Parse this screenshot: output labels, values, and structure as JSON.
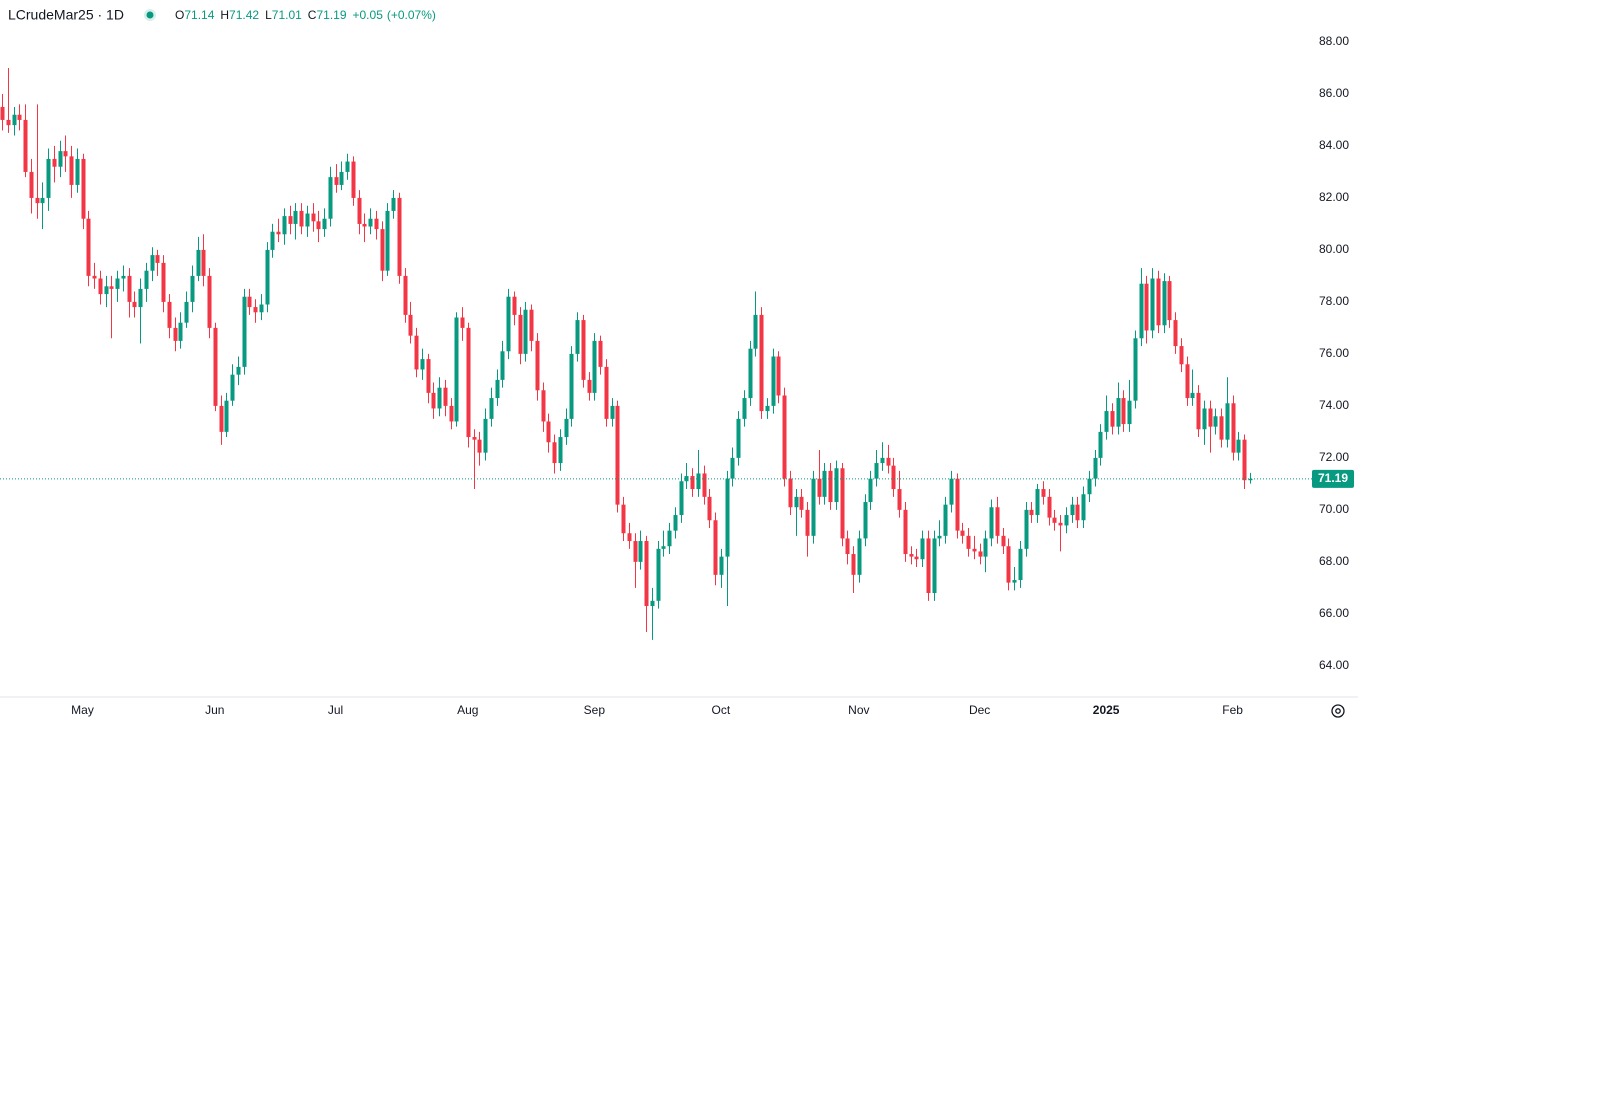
{
  "chart_data": {
    "type": "candlestick",
    "title": "LCrudeMar25 · 1D",
    "ohlc_labels": [
      "O",
      "H",
      "L",
      "C"
    ],
    "change": {
      "value": 0.05,
      "label": "+0.05"
    },
    "change_percent": {
      "value": 0.07,
      "label": "(+0.07%)"
    },
    "up_color": "#089981",
    "down_color": "#f23645",
    "last_price_line": true,
    "ylim": [
      62.8,
      88.46
    ],
    "yticks": [
      {
        "value": 64,
        "label": "64.00"
      },
      {
        "value": 66,
        "label": "66.00"
      },
      {
        "value": 68,
        "label": "68.00"
      },
      {
        "value": 70,
        "label": "70.00"
      },
      {
        "value": 72,
        "label": "72.00"
      },
      {
        "value": 74,
        "label": "74.00"
      },
      {
        "value": 76,
        "label": "76.00"
      },
      {
        "value": 78,
        "label": "78.00"
      },
      {
        "value": 80,
        "label": "80.00"
      },
      {
        "value": 82,
        "label": "82.00"
      },
      {
        "value": 84,
        "label": "84.00"
      },
      {
        "value": 86,
        "label": "86.00"
      },
      {
        "value": 88,
        "label": "88.00"
      }
    ],
    "xlim": [
      -0.35,
      235.8
    ],
    "xticks": [
      {
        "value": 14,
        "label": "May"
      },
      {
        "value": 37,
        "label": "Jun"
      },
      {
        "value": 58,
        "label": "Jul"
      },
      {
        "value": 81,
        "label": "Aug"
      },
      {
        "value": 103,
        "label": "Sep"
      },
      {
        "value": 125,
        "label": "Oct"
      },
      {
        "value": 149,
        "label": "Nov"
      },
      {
        "value": 170,
        "label": "Dec"
      },
      {
        "value": 192,
        "label": "2025"
      },
      {
        "value": 214,
        "label": "Feb"
      }
    ],
    "candles": [
      [
        85.5,
        86.0,
        84.6,
        85.0
      ],
      [
        85.0,
        87.0,
        84.5,
        84.8
      ],
      [
        84.8,
        85.5,
        84.4,
        85.2
      ],
      [
        85.2,
        85.6,
        84.6,
        85.0
      ],
      [
        85.0,
        85.6,
        82.8,
        83.0
      ],
      [
        83.0,
        83.5,
        81.4,
        82.0
      ],
      [
        82.0,
        85.6,
        81.2,
        81.8
      ],
      [
        81.8,
        82.6,
        80.8,
        82.0
      ],
      [
        82.0,
        83.9,
        81.5,
        83.5
      ],
      [
        83.5,
        84.0,
        82.6,
        83.2
      ],
      [
        83.2,
        84.2,
        82.8,
        83.8
      ],
      [
        83.8,
        84.4,
        83.0,
        83.6
      ],
      [
        83.6,
        84.0,
        82.0,
        82.5
      ],
      [
        82.5,
        83.9,
        82.2,
        83.5
      ],
      [
        83.5,
        83.7,
        80.8,
        81.2
      ],
      [
        81.2,
        81.5,
        78.6,
        79.0
      ],
      [
        79.0,
        79.5,
        78.5,
        78.9
      ],
      [
        78.9,
        79.2,
        77.9,
        78.3
      ],
      [
        78.3,
        79.0,
        77.8,
        78.6
      ],
      [
        78.6,
        79.0,
        76.6,
        78.5
      ],
      [
        78.5,
        79.2,
        78.0,
        78.9
      ],
      [
        78.9,
        79.4,
        78.4,
        79.0
      ],
      [
        79.0,
        79.3,
        77.4,
        78.0
      ],
      [
        78.0,
        78.4,
        77.4,
        77.8
      ],
      [
        77.8,
        78.9,
        76.4,
        78.5
      ],
      [
        78.5,
        79.5,
        78.0,
        79.2
      ],
      [
        79.2,
        80.1,
        78.8,
        79.8
      ],
      [
        79.8,
        80.0,
        79.0,
        79.5
      ],
      [
        79.5,
        79.8,
        77.6,
        78.0
      ],
      [
        78.0,
        78.3,
        76.6,
        77.0
      ],
      [
        77.0,
        77.4,
        76.1,
        76.5
      ],
      [
        76.5,
        77.6,
        76.2,
        77.2
      ],
      [
        77.2,
        78.4,
        77.0,
        78.0
      ],
      [
        78.0,
        79.4,
        77.6,
        79.0
      ],
      [
        79.0,
        80.5,
        78.8,
        80.0
      ],
      [
        80.0,
        80.6,
        78.6,
        79.0
      ],
      [
        79.0,
        79.3,
        76.6,
        77.0
      ],
      [
        77.0,
        77.2,
        73.8,
        74.0
      ],
      [
        74.0,
        74.4,
        72.5,
        73.0
      ],
      [
        73.0,
        74.5,
        72.8,
        74.2
      ],
      [
        74.2,
        75.6,
        74.0,
        75.2
      ],
      [
        75.2,
        75.9,
        74.8,
        75.5
      ],
      [
        75.5,
        78.5,
        75.2,
        78.2
      ],
      [
        78.2,
        78.5,
        77.5,
        77.8
      ],
      [
        77.8,
        78.1,
        77.2,
        77.6
      ],
      [
        77.6,
        78.3,
        77.3,
        77.9
      ],
      [
        77.9,
        80.3,
        77.6,
        80.0
      ],
      [
        80.0,
        81.0,
        79.7,
        80.7
      ],
      [
        80.7,
        81.2,
        80.3,
        80.6
      ],
      [
        80.6,
        81.6,
        80.2,
        81.3
      ],
      [
        81.3,
        81.7,
        80.6,
        81.0
      ],
      [
        81.0,
        81.8,
        80.4,
        81.5
      ],
      [
        81.5,
        81.8,
        80.6,
        80.9
      ],
      [
        80.9,
        81.7,
        80.5,
        81.4
      ],
      [
        81.4,
        81.8,
        80.7,
        81.1
      ],
      [
        81.1,
        81.5,
        80.3,
        80.8
      ],
      [
        80.8,
        81.6,
        80.5,
        81.2
      ],
      [
        81.2,
        83.2,
        80.9,
        82.8
      ],
      [
        82.8,
        83.3,
        82.2,
        82.5
      ],
      [
        82.5,
        83.4,
        82.3,
        83.0
      ],
      [
        83.0,
        83.7,
        82.7,
        83.4
      ],
      [
        83.4,
        83.6,
        81.7,
        82.0
      ],
      [
        82.0,
        82.3,
        80.6,
        81.0
      ],
      [
        81.0,
        81.4,
        80.3,
        80.9
      ],
      [
        80.9,
        81.6,
        80.6,
        81.2
      ],
      [
        81.2,
        81.5,
        80.4,
        80.8
      ],
      [
        80.8,
        81.1,
        78.8,
        79.2
      ],
      [
        79.2,
        81.8,
        79.0,
        81.5
      ],
      [
        81.5,
        82.3,
        81.2,
        82.0
      ],
      [
        82.0,
        82.2,
        78.7,
        79.0
      ],
      [
        79.0,
        79.3,
        77.2,
        77.5
      ],
      [
        77.5,
        78.0,
        76.4,
        76.7
      ],
      [
        76.7,
        77.0,
        75.1,
        75.4
      ],
      [
        75.4,
        76.2,
        75.0,
        75.8
      ],
      [
        75.8,
        76.0,
        74.1,
        74.5
      ],
      [
        74.5,
        74.9,
        73.5,
        73.9
      ],
      [
        73.9,
        75.1,
        73.6,
        74.7
      ],
      [
        74.7,
        75.0,
        73.6,
        74.0
      ],
      [
        74.0,
        74.3,
        73.1,
        73.4
      ],
      [
        73.4,
        77.6,
        73.2,
        77.4
      ],
      [
        77.4,
        77.8,
        76.5,
        77.0
      ],
      [
        77.0,
        77.2,
        72.4,
        72.8
      ],
      [
        72.8,
        73.1,
        70.8,
        72.7
      ],
      [
        72.7,
        73.0,
        71.7,
        72.2
      ],
      [
        72.2,
        73.9,
        71.9,
        73.5
      ],
      [
        73.5,
        74.7,
        73.2,
        74.3
      ],
      [
        74.3,
        75.4,
        74.0,
        75.0
      ],
      [
        75.0,
        76.5,
        74.7,
        76.1
      ],
      [
        76.1,
        78.5,
        75.8,
        78.2
      ],
      [
        78.2,
        78.4,
        77.1,
        77.5
      ],
      [
        77.5,
        77.8,
        75.6,
        76.0
      ],
      [
        76.0,
        78.0,
        75.7,
        77.7
      ],
      [
        77.7,
        77.9,
        76.1,
        76.5
      ],
      [
        76.5,
        76.8,
        74.2,
        74.6
      ],
      [
        74.6,
        74.9,
        73.0,
        73.4
      ],
      [
        73.4,
        73.7,
        72.2,
        72.6
      ],
      [
        72.6,
        72.9,
        71.4,
        71.8
      ],
      [
        71.8,
        73.1,
        71.5,
        72.8
      ],
      [
        72.8,
        73.9,
        72.5,
        73.5
      ],
      [
        73.5,
        76.3,
        73.2,
        76.0
      ],
      [
        76.0,
        77.6,
        75.7,
        77.3
      ],
      [
        77.3,
        77.5,
        74.7,
        75.0
      ],
      [
        75.0,
        75.3,
        74.2,
        74.5
      ],
      [
        74.5,
        76.8,
        74.2,
        76.5
      ],
      [
        76.5,
        76.7,
        75.2,
        75.5
      ],
      [
        75.5,
        75.8,
        73.2,
        73.5
      ],
      [
        73.5,
        74.3,
        73.2,
        74.0
      ],
      [
        74.0,
        74.2,
        69.9,
        70.2
      ],
      [
        70.2,
        70.5,
        68.8,
        69.1
      ],
      [
        69.1,
        69.5,
        68.5,
        68.8
      ],
      [
        68.8,
        69.1,
        67.0,
        68.0
      ],
      [
        68.0,
        69.2,
        67.7,
        68.8
      ],
      [
        68.8,
        69.0,
        65.3,
        66.3
      ],
      [
        66.3,
        67.0,
        65.0,
        66.5
      ],
      [
        66.5,
        68.8,
        66.2,
        68.5
      ],
      [
        68.5,
        69.2,
        68.2,
        68.6
      ],
      [
        68.6,
        69.5,
        68.3,
        69.2
      ],
      [
        69.2,
        70.1,
        68.9,
        69.8
      ],
      [
        69.8,
        71.4,
        69.5,
        71.1
      ],
      [
        71.1,
        71.8,
        70.8,
        71.3
      ],
      [
        71.3,
        71.6,
        70.5,
        70.8
      ],
      [
        70.8,
        72.3,
        70.5,
        71.4
      ],
      [
        71.4,
        71.7,
        70.2,
        70.5
      ],
      [
        70.5,
        70.8,
        69.3,
        69.6
      ],
      [
        69.6,
        69.9,
        67.1,
        67.5
      ],
      [
        67.5,
        68.5,
        67.0,
        68.2
      ],
      [
        68.2,
        71.5,
        66.3,
        71.2
      ],
      [
        71.2,
        72.4,
        70.9,
        72.0
      ],
      [
        72.0,
        73.8,
        71.7,
        73.5
      ],
      [
        73.5,
        74.6,
        73.2,
        74.3
      ],
      [
        74.3,
        76.5,
        74.0,
        76.2
      ],
      [
        76.2,
        78.4,
        75.9,
        77.5
      ],
      [
        77.5,
        77.8,
        73.5,
        73.8
      ],
      [
        73.8,
        74.3,
        73.5,
        74.0
      ],
      [
        74.0,
        76.2,
        73.7,
        75.9
      ],
      [
        75.9,
        76.1,
        74.1,
        74.4
      ],
      [
        74.4,
        74.7,
        70.9,
        71.2
      ],
      [
        71.2,
        71.5,
        69.8,
        70.1
      ],
      [
        70.1,
        70.8,
        69.0,
        70.5
      ],
      [
        70.5,
        70.8,
        69.7,
        70.0
      ],
      [
        70.0,
        70.3,
        68.2,
        69.0
      ],
      [
        69.0,
        71.5,
        68.7,
        71.2
      ],
      [
        71.2,
        72.3,
        70.2,
        70.5
      ],
      [
        70.5,
        71.8,
        70.2,
        71.5
      ],
      [
        71.5,
        71.8,
        70.0,
        70.3
      ],
      [
        70.3,
        71.9,
        70.0,
        71.6
      ],
      [
        71.6,
        71.8,
        68.6,
        68.9
      ],
      [
        68.9,
        69.2,
        67.9,
        68.3
      ],
      [
        68.3,
        68.6,
        66.8,
        67.5
      ],
      [
        67.5,
        69.2,
        67.2,
        68.9
      ],
      [
        68.9,
        70.6,
        68.6,
        70.3
      ],
      [
        70.3,
        71.5,
        70.0,
        71.2
      ],
      [
        71.2,
        72.3,
        70.9,
        71.8
      ],
      [
        71.8,
        72.6,
        71.5,
        72.0
      ],
      [
        72.0,
        72.5,
        71.4,
        71.7
      ],
      [
        71.7,
        72.0,
        70.5,
        70.8
      ],
      [
        70.8,
        71.5,
        69.7,
        70.0
      ],
      [
        70.0,
        70.3,
        68.0,
        68.3
      ],
      [
        68.3,
        68.6,
        67.9,
        68.2
      ],
      [
        68.2,
        68.5,
        67.8,
        68.1
      ],
      [
        68.1,
        69.2,
        67.8,
        68.9
      ],
      [
        68.9,
        69.2,
        66.5,
        66.8
      ],
      [
        66.8,
        69.2,
        66.5,
        68.9
      ],
      [
        68.9,
        69.6,
        68.6,
        69.0
      ],
      [
        69.0,
        70.5,
        68.7,
        70.2
      ],
      [
        70.2,
        71.5,
        69.9,
        71.2
      ],
      [
        71.2,
        71.4,
        68.9,
        69.2
      ],
      [
        69.2,
        69.5,
        68.7,
        69.0
      ],
      [
        69.0,
        69.3,
        68.2,
        68.5
      ],
      [
        68.5,
        69.0,
        68.1,
        68.4
      ],
      [
        68.4,
        68.7,
        67.9,
        68.2
      ],
      [
        68.2,
        69.2,
        67.6,
        68.9
      ],
      [
        68.9,
        70.4,
        68.6,
        70.1
      ],
      [
        70.1,
        70.5,
        68.7,
        69.0
      ],
      [
        69.0,
        69.3,
        68.3,
        68.6
      ],
      [
        68.6,
        68.9,
        66.9,
        67.2
      ],
      [
        67.2,
        67.8,
        66.9,
        67.3
      ],
      [
        67.3,
        68.8,
        67.0,
        68.5
      ],
      [
        68.5,
        70.3,
        68.2,
        70.0
      ],
      [
        70.0,
        70.3,
        69.5,
        69.8
      ],
      [
        69.8,
        71.0,
        69.5,
        70.8
      ],
      [
        70.8,
        71.1,
        70.2,
        70.5
      ],
      [
        70.5,
        70.8,
        69.4,
        69.7
      ],
      [
        69.7,
        70.0,
        69.2,
        69.5
      ],
      [
        69.5,
        69.8,
        68.4,
        69.4
      ],
      [
        69.4,
        70.1,
        69.1,
        69.8
      ],
      [
        69.8,
        70.5,
        69.5,
        70.2
      ],
      [
        70.2,
        70.5,
        69.3,
        69.6
      ],
      [
        69.6,
        70.9,
        69.3,
        70.6
      ],
      [
        70.6,
        71.5,
        70.3,
        71.2
      ],
      [
        71.2,
        72.3,
        70.9,
        72.0
      ],
      [
        72.0,
        73.3,
        71.7,
        73.0
      ],
      [
        73.0,
        74.4,
        72.7,
        73.8
      ],
      [
        73.8,
        74.1,
        72.9,
        73.2
      ],
      [
        73.2,
        74.9,
        72.9,
        74.3
      ],
      [
        74.3,
        74.6,
        73.0,
        73.3
      ],
      [
        73.3,
        75.0,
        73.0,
        74.2
      ],
      [
        74.2,
        76.9,
        73.9,
        76.6
      ],
      [
        76.6,
        79.3,
        76.3,
        78.7
      ],
      [
        78.7,
        79.0,
        76.4,
        76.9
      ],
      [
        76.9,
        79.3,
        76.6,
        78.9
      ],
      [
        78.9,
        79.2,
        76.8,
        77.1
      ],
      [
        77.1,
        79.1,
        76.8,
        78.8
      ],
      [
        78.8,
        79.0,
        77.0,
        77.3
      ],
      [
        77.3,
        77.6,
        76.0,
        76.3
      ],
      [
        76.3,
        76.6,
        75.3,
        75.6
      ],
      [
        75.6,
        75.9,
        74.0,
        74.3
      ],
      [
        74.3,
        75.4,
        74.0,
        74.5
      ],
      [
        74.5,
        74.8,
        72.8,
        73.1
      ],
      [
        73.1,
        74.2,
        72.5,
        73.9
      ],
      [
        73.9,
        74.2,
        72.2,
        73.2
      ],
      [
        73.2,
        73.9,
        72.9,
        73.6
      ],
      [
        73.6,
        73.9,
        72.4,
        72.7
      ],
      [
        72.7,
        75.1,
        72.4,
        74.1
      ],
      [
        74.1,
        74.4,
        71.9,
        72.2
      ],
      [
        72.2,
        73.0,
        71.9,
        72.7
      ],
      [
        72.7,
        72.9,
        70.8,
        71.14
      ],
      [
        71.14,
        71.42,
        71.01,
        71.19
      ]
    ]
  }
}
